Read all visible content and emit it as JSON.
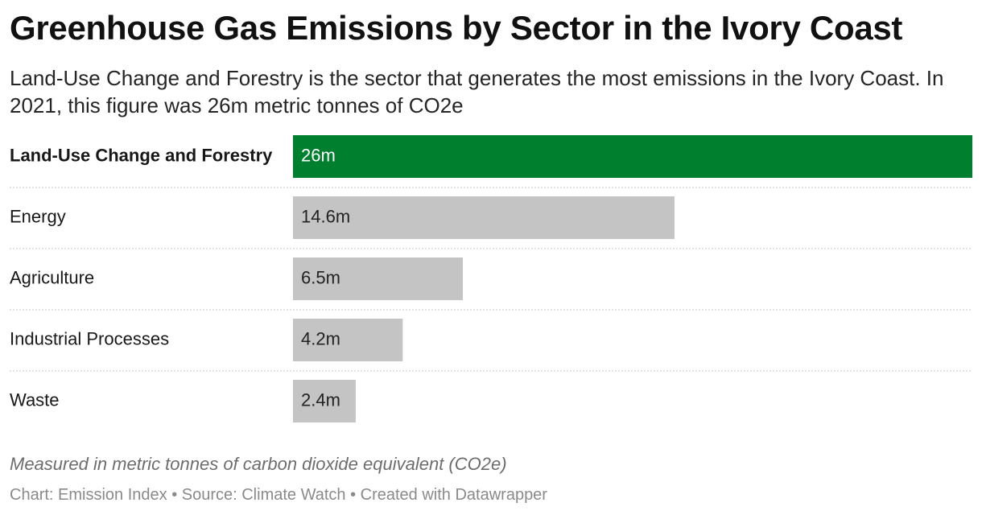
{
  "header": {
    "title": "Greenhouse Gas Emissions by Sector in the Ivory Coast",
    "subtitle": "Land-Use Change and Forestry is the sector that generates the most emissions in the Ivory Coast. In 2021, this figure was 26m metric tonnes of CO2e"
  },
  "chart_data": {
    "type": "bar",
    "orientation": "horizontal",
    "categories": [
      "Land-Use Change and Forestry",
      "Energy",
      "Agriculture",
      "Industrial Processes",
      "Waste"
    ],
    "values": [
      26,
      14.6,
      6.5,
      4.2,
      2.4
    ],
    "value_labels": [
      "26m",
      "14.6m",
      "6.5m",
      "4.2m",
      "2.4m"
    ],
    "highlight_index": 0,
    "colors": {
      "highlight": "#00802f",
      "default": "#c4c4c4",
      "separator": "#d9d9d9"
    },
    "grid": false,
    "xlim": [
      0,
      26
    ]
  },
  "notes": {
    "measure": "Measured in metric tonnes of carbon dioxide equivalent (CO2e)",
    "footer": "Chart: Emission Index • Source: Climate Watch • Created with Datawrapper"
  }
}
